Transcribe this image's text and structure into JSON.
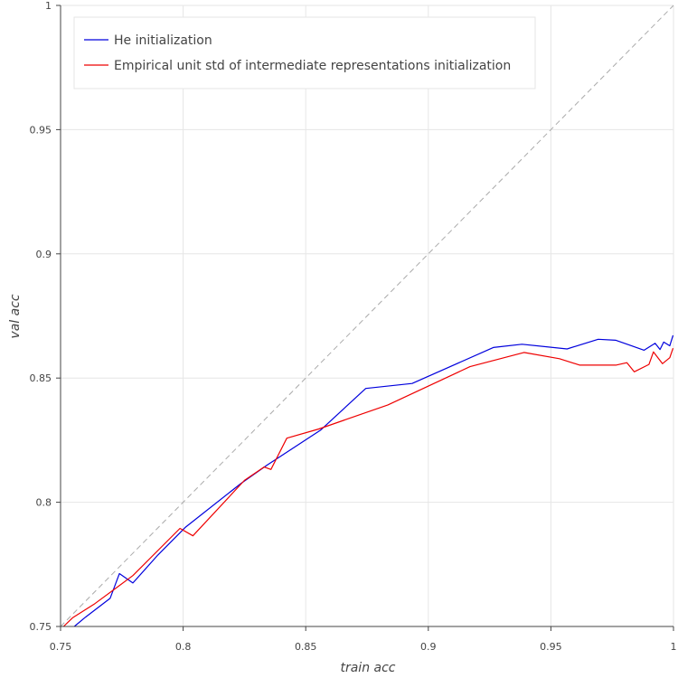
{
  "chart_data": {
    "type": "line",
    "title": "",
    "xlabel": "train acc",
    "ylabel": "val acc",
    "xlim": [
      0.75,
      1.0
    ],
    "ylim": [
      0.75,
      1.0
    ],
    "x_ticks": [
      "0.75",
      "0.8",
      "0.85",
      "0.9",
      "0.95",
      "1"
    ],
    "y_ticks": [
      "0.75",
      "0.8",
      "0.85",
      "0.9",
      "0.95",
      "1"
    ],
    "grid": true,
    "legend_position": "top-left",
    "reference_line": {
      "from": [
        0.75,
        0.75
      ],
      "to": [
        1.0,
        1.0
      ],
      "color": "#aaaaaa",
      "style": "dashed"
    },
    "series": [
      {
        "name": "He initialization",
        "color": "#0000dd",
        "points": [
          [
            0.7556,
            0.75
          ],
          [
            0.7602,
            0.7538
          ],
          [
            0.7702,
            0.7613
          ],
          [
            0.774,
            0.7713
          ],
          [
            0.7795,
            0.7675
          ],
          [
            0.7897,
            0.7788
          ],
          [
            0.801,
            0.79
          ],
          [
            0.8235,
            0.8075
          ],
          [
            0.8343,
            0.815
          ],
          [
            0.856,
            0.829
          ],
          [
            0.8745,
            0.8458
          ],
          [
            0.8934,
            0.8478
          ],
          [
            0.9265,
            0.8623
          ],
          [
            0.9382,
            0.8636
          ],
          [
            0.9566,
            0.8617
          ],
          [
            0.9693,
            0.8656
          ],
          [
            0.9765,
            0.8652
          ],
          [
            0.988,
            0.8612
          ],
          [
            0.9925,
            0.864
          ],
          [
            0.9945,
            0.8615
          ],
          [
            0.996,
            0.8645
          ],
          [
            0.9985,
            0.863
          ],
          [
            0.9998,
            0.8672
          ]
        ]
      },
      {
        "name": "Empirical unit std of intermediate representations initialization",
        "color": "#ee0000",
        "points": [
          [
            0.7512,
            0.75
          ],
          [
            0.7549,
            0.7535
          ],
          [
            0.764,
            0.7592
          ],
          [
            0.7795,
            0.7705
          ],
          [
            0.7987,
            0.7895
          ],
          [
            0.804,
            0.7865
          ],
          [
            0.825,
            0.8088
          ],
          [
            0.833,
            0.8142
          ],
          [
            0.8358,
            0.8132
          ],
          [
            0.8423,
            0.8258
          ],
          [
            0.8554,
            0.8295
          ],
          [
            0.8835,
            0.8392
          ],
          [
            0.917,
            0.8546
          ],
          [
            0.939,
            0.8603
          ],
          [
            0.9535,
            0.8578
          ],
          [
            0.9618,
            0.8552
          ],
          [
            0.9765,
            0.8552
          ],
          [
            0.981,
            0.8562
          ],
          [
            0.984,
            0.8525
          ],
          [
            0.99,
            0.8555
          ],
          [
            0.9918,
            0.8605
          ],
          [
            0.9955,
            0.8558
          ],
          [
            0.9985,
            0.8582
          ],
          [
            0.9998,
            0.862
          ]
        ]
      }
    ]
  }
}
